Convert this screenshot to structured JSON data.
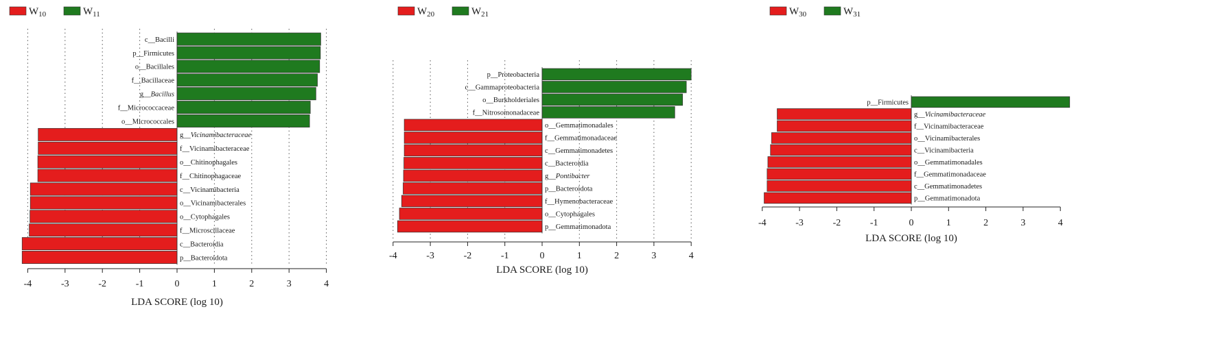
{
  "colors": {
    "negative": "#e41d1d",
    "positive": "#1f7a1f"
  },
  "chart_data": [
    {
      "type": "bar",
      "orientation": "horizontal",
      "legend": [
        {
          "label": "W",
          "sub": "10",
          "color": "#e41d1d"
        },
        {
          "label": "W",
          "sub": "11",
          "color": "#1f7a1f"
        }
      ],
      "xlabel": "LDA SCORE (log 10)",
      "xlim": [
        -4.2,
        4.2
      ],
      "xticks": [
        "-4",
        "-3",
        "-2",
        "-1",
        "0",
        "1",
        "2",
        "3",
        "4"
      ],
      "grid": "vertical-dotted",
      "bars": [
        {
          "label": "c__Bacilli",
          "value": 3.85
        },
        {
          "label": "p__Firmicutes",
          "value": 3.84
        },
        {
          "label": "o__Bacillales",
          "value": 3.82
        },
        {
          "label": "f__Bacillaceae",
          "value": 3.76
        },
        {
          "label": "g__Bacillus",
          "value": 3.72,
          "italic": true
        },
        {
          "label": "f__Micrococcaceae",
          "value": 3.57
        },
        {
          "label": "o__Micrococcales",
          "value": 3.55
        },
        {
          "label": "g__Vicinamibacteraceae",
          "value": -3.72,
          "italic": true
        },
        {
          "label": "f__Vicinamibacteraceae",
          "value": -3.72
        },
        {
          "label": "o__Chitinophagales",
          "value": -3.73
        },
        {
          "label": "f__Chitinophagaceae",
          "value": -3.73
        },
        {
          "label": "c__Vicinamibacteria",
          "value": -3.93
        },
        {
          "label": "o__Vicinamibacterales",
          "value": -3.93
        },
        {
          "label": "o__Cytophagales",
          "value": -3.94
        },
        {
          "label": "f__Microscillaceae",
          "value": -3.96
        },
        {
          "label": "c__Bacteroidia",
          "value": -4.15
        },
        {
          "label": "p__Bacteroidota",
          "value": -4.15
        }
      ]
    },
    {
      "type": "bar",
      "orientation": "horizontal",
      "legend": [
        {
          "label": "W",
          "sub": "20",
          "color": "#e41d1d"
        },
        {
          "label": "W",
          "sub": "21",
          "color": "#1f7a1f"
        }
      ],
      "xlabel": "LDA SCORE (log 10)",
      "xlim": [
        -4.2,
        4.2
      ],
      "xticks": [
        "-4",
        "-3",
        "-2",
        "-1",
        "0",
        "1",
        "2",
        "3",
        "4"
      ],
      "grid": "vertical-dotted",
      "bars": [
        {
          "label": "p__Proteobacteria",
          "value": 4.0
        },
        {
          "label": "c__Gammaproteobacteria",
          "value": 3.87
        },
        {
          "label": "o__Burkholderiales",
          "value": 3.77
        },
        {
          "label": "f__Nitrosomonadaceae",
          "value": 3.56
        },
        {
          "label": "o__Gemmatimonadales",
          "value": -3.7
        },
        {
          "label": "f__Gemmatimonadaceae",
          "value": -3.7
        },
        {
          "label": "c__Gemmatimonadetes",
          "value": -3.7
        },
        {
          "label": "c__Bacteroidia",
          "value": -3.71
        },
        {
          "label": "g__Pontibacter",
          "value": -3.72,
          "italic": true
        },
        {
          "label": "p__Bacteroidota",
          "value": -3.73
        },
        {
          "label": "f__Hymenobacteraceae",
          "value": -3.77
        },
        {
          "label": "o__Cytophagales",
          "value": -3.83
        },
        {
          "label": "p__Gemmatimonadota",
          "value": -3.88
        }
      ]
    },
    {
      "type": "bar",
      "orientation": "horizontal",
      "legend": [
        {
          "label": "W",
          "sub": "30",
          "color": "#e41d1d"
        },
        {
          "label": "W",
          "sub": "31",
          "color": "#1f7a1f"
        }
      ],
      "xlabel": "LDA SCORE (log 10)",
      "xlim": [
        -4.2,
        4.3
      ],
      "xticks": [
        "-4",
        "-3",
        "-2",
        "-1",
        "0",
        "1",
        "2",
        "3",
        "4"
      ],
      "grid": "none",
      "bars": [
        {
          "label": "p__Firmicutes",
          "value": 4.25
        },
        {
          "label": "g__Vicinamibacteraceae",
          "value": -3.6,
          "italic": true
        },
        {
          "label": "f__Vicinamibacteraceae",
          "value": -3.6
        },
        {
          "label": "o__Vicinamibacterales",
          "value": -3.75
        },
        {
          "label": "c__Vicinamibacteria",
          "value": -3.78
        },
        {
          "label": "o__Gemmatimonadales",
          "value": -3.85
        },
        {
          "label": "f__Gemmatimonadaceae",
          "value": -3.87
        },
        {
          "label": "c__Gemmatimonadetes",
          "value": -3.87
        },
        {
          "label": "p__Gemmatimonadota",
          "value": -3.95
        }
      ]
    }
  ]
}
